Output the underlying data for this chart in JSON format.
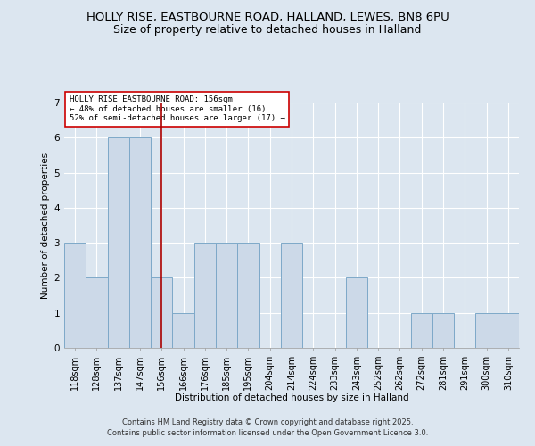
{
  "title1": "HOLLY RISE, EASTBOURNE ROAD, HALLAND, LEWES, BN8 6PU",
  "title2": "Size of property relative to detached houses in Halland",
  "xlabel": "Distribution of detached houses by size in Halland",
  "ylabel": "Number of detached properties",
  "categories": [
    "118sqm",
    "128sqm",
    "137sqm",
    "147sqm",
    "156sqm",
    "166sqm",
    "176sqm",
    "185sqm",
    "195sqm",
    "204sqm",
    "214sqm",
    "224sqm",
    "233sqm",
    "243sqm",
    "252sqm",
    "262sqm",
    "272sqm",
    "281sqm",
    "291sqm",
    "300sqm",
    "310sqm"
  ],
  "values": [
    3,
    2,
    6,
    6,
    2,
    1,
    3,
    3,
    3,
    0,
    3,
    0,
    0,
    2,
    0,
    0,
    1,
    1,
    0,
    1,
    1
  ],
  "bar_color": "#ccd9e8",
  "bar_edge_color": "#7da8c8",
  "highlight_index": 4,
  "highlight_line_color": "#aa0000",
  "ylim": [
    0,
    7
  ],
  "yticks": [
    0,
    1,
    2,
    3,
    4,
    5,
    6,
    7
  ],
  "annotation_text": "HOLLY RISE EASTBOURNE ROAD: 156sqm\n← 48% of detached houses are smaller (16)\n52% of semi-detached houses are larger (17) →",
  "annotation_box_facecolor": "#ffffff",
  "annotation_box_edgecolor": "#cc0000",
  "footer1": "Contains HM Land Registry data © Crown copyright and database right 2025.",
  "footer2": "Contains public sector information licensed under the Open Government Licence 3.0.",
  "background_color": "#dce6f0",
  "plot_background": "#dce6f0",
  "grid_color": "#ffffff",
  "title_fontsize": 9.5,
  "subtitle_fontsize": 9,
  "axis_label_fontsize": 7.5,
  "tick_fontsize": 7,
  "annotation_fontsize": 6.5,
  "footer_fontsize": 6
}
